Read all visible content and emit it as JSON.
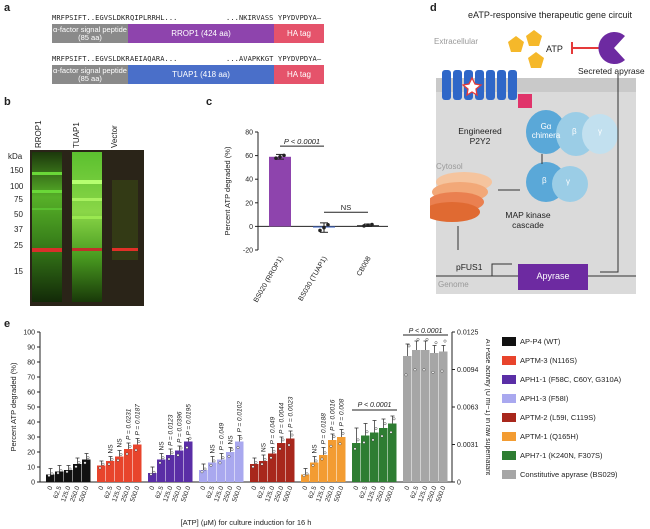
{
  "panel_labels": {
    "a": "a",
    "b": "b",
    "c": "c",
    "d": "d",
    "e": "e"
  },
  "panel_a": {
    "row1": {
      "seq_left": "MRFPSIFT..EGVSLDKR",
      "seq_mid": "QIPLRRHL...",
      "seq_right": "...NKIRVASS",
      "seq_end": "YPYDVPDYA–",
      "signal": "α-factor signal peptide (85 aa)",
      "protein": "RROP1 (424 aa)",
      "tag": "HA tag"
    },
    "row2": {
      "seq_left": "MRFPSIFT..EGVSLDKR",
      "seq_mid": "AEIAQARA...",
      "seq_right": "...AVAPKKGT",
      "seq_end": "YPYDVPDYA–",
      "signal": "α-factor signal peptide (85 aa)",
      "protein": "TUAP1 (418 aa)",
      "tag": "HA tag"
    },
    "colors": {
      "signal": "#8a8a8a",
      "rrop1": "#8e44ad",
      "tuap1": "#4a6fc9",
      "tag": "#e5536b"
    }
  },
  "panel_b": {
    "lanes": [
      "RROP1",
      "TUAP1",
      "Vector"
    ],
    "unit": "kDa",
    "markers": [
      "150",
      "100",
      "75",
      "50",
      "37",
      "25",
      "15"
    ]
  },
  "panel_c": {
    "pvalue": "P < 0.0001",
    "ns": "NS"
  },
  "panel_d": {
    "title": "eATP-responsive therapeutic gene circuit",
    "extracellular": "Extracellular",
    "atp": "ATP",
    "secreted": "Secreted apyrase",
    "engineered": "Engineered P2Y2",
    "galpha": "Gα chimera",
    "beta": "β",
    "gamma": "γ",
    "cytosol": "Cytosol",
    "map": "MAP kinase cascade",
    "promoter": "pFUS1",
    "genome": "Genome",
    "apyrase": "Apyrase"
  },
  "panel_e": {
    "xlabel": "[ATP] (μM) for culture induction for 16 h",
    "legend": [
      {
        "label": "AP-P4 (WT)",
        "color": "#111111"
      },
      {
        "label": "APTM-3 (N116S)",
        "color": "#e8442c"
      },
      {
        "label": "APH1-1 (F58C, C60Y, G310A)",
        "color": "#5a2ea6"
      },
      {
        "label": "APH1-3 (F58I)",
        "color": "#a9a8ef"
      },
      {
        "label": "APTM-2 (L59I, C119S)",
        "color": "#a8271c"
      },
      {
        "label": "APTM-1 (Q165H)",
        "color": "#f39c32"
      },
      {
        "label": "APH7-1 (K240N, F307S)",
        "color": "#2e7d32"
      },
      {
        "label": "Constitutive apyrase (BS029)",
        "color": "#a6a6a6"
      }
    ],
    "p_group": "P < 0.0001",
    "p_const": "P < 0.0001"
  },
  "chart_data": [
    {
      "type": "bar",
      "panel": "c",
      "categories": [
        "BS020 (RROP1)",
        "BS030 (TUAP1)",
        "CB008"
      ],
      "values": [
        59,
        -1,
        1
      ],
      "errors": [
        2,
        4,
        1
      ],
      "colors": [
        "#8e44ad",
        "#4a6fc9",
        "#222222"
      ],
      "ylabel": "Percent ATP degraded (%)",
      "ylim": [
        -20,
        80
      ],
      "yticks": [
        -20,
        0,
        20,
        40,
        60,
        80
      ]
    },
    {
      "type": "bar",
      "panel": "e",
      "ylabel": "Percent ATP degraded (%)",
      "y2label": "ATPase activity (U ml−1) in raw supernatant",
      "ylim": [
        0,
        100
      ],
      "yticks": [
        0,
        10,
        20,
        30,
        40,
        50,
        60,
        70,
        80,
        90,
        100
      ],
      "y2ticks": [
        "0",
        "0.0031",
        "0.0063",
        "0.0094",
        "0.0125"
      ],
      "categories": [
        "0",
        "62.5",
        "125.0",
        "250.0",
        "500.0"
      ],
      "series": [
        {
          "name": "AP-P4 (WT)",
          "values": [
            5,
            7,
            8,
            12,
            15
          ],
          "errors": [
            4,
            4,
            3,
            4,
            4
          ],
          "annotations": []
        },
        {
          "name": "APTM-3 (N116S)",
          "values": [
            11,
            14,
            17,
            22,
            25
          ],
          "errors": [
            3,
            3,
            4,
            4,
            4
          ],
          "annotations": [
            "NS",
            "NS",
            "P = 0.0231",
            "P = 0.0187"
          ]
        },
        {
          "name": "APH1-1 (F58C, C60Y, G310A)",
          "values": [
            6,
            15,
            18,
            21,
            27
          ],
          "errors": [
            4,
            4,
            4,
            3,
            2
          ],
          "annotations": [
            "NS",
            "P = 0.0123",
            "P = 0.0396",
            "P = 0.0195"
          ]
        },
        {
          "name": "APH1-3 (F58I)",
          "values": [
            8,
            13,
            15,
            20,
            27
          ],
          "errors": [
            4,
            4,
            4,
            3,
            4
          ],
          "annotations": [
            "NS",
            "P = 0.049",
            "NS",
            "P = 0.0102"
          ]
        },
        {
          "name": "APTM-2 (L59I, C119S)",
          "values": [
            12,
            14,
            19,
            26,
            29
          ],
          "errors": [
            4,
            4,
            4,
            4,
            5
          ],
          "annotations": [
            "NS",
            "P = 0.049",
            "P = 0.0044",
            "P = 0.0023"
          ]
        },
        {
          "name": "APTM-1 (Q165H)",
          "values": [
            5,
            13,
            18,
            28,
            30
          ],
          "errors": [
            4,
            4,
            5,
            4,
            5
          ],
          "annotations": [
            "NS",
            "P = 0.0188",
            "P = 0.0016",
            "P = 0.008"
          ]
        },
        {
          "name": "APH7-1 (K240N, F307S)",
          "values": [
            26,
            31,
            33,
            36,
            39
          ],
          "errors": [
            10,
            8,
            8,
            6,
            5
          ],
          "annotations": []
        },
        {
          "name": "Constitutive apyrase (BS029)",
          "values": [
            84,
            88,
            88,
            86,
            87
          ],
          "errors": [
            8,
            6,
            6,
            5,
            4
          ],
          "annotations": []
        }
      ]
    }
  ]
}
